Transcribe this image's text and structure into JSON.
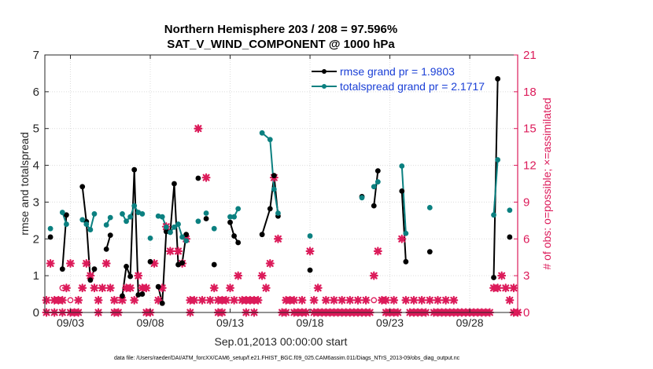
{
  "chart_data": {
    "type": "line",
    "title": "Northern Hemisphere 203 / 208 = 97.596%",
    "subtitle": "SAT_V_WIND_COMPONENT @ 1000 hPa",
    "xlabel": "Sep.01,2013 00:00:00 start",
    "ylabel_left": "rmse and totalspread",
    "ylabel_right": "# of obs: o=possible; ×=assimilated",
    "footer": "data file: /Users/raeder/DAI/ATM_forcXX/CAM6_setup/f.e21.FHIST_BGC.f09_025.CAM6assim.011/Diags_NTrS_2013-09/obs_diag_output.nc",
    "xlim": [
      1.4,
      31.0
    ],
    "ylim_left": [
      0,
      7
    ],
    "ylim_right": [
      0,
      21
    ],
    "x_ticks": [
      3,
      8,
      13,
      18,
      23,
      28
    ],
    "x_tick_labels": [
      "09/03",
      "09/08",
      "09/13",
      "09/18",
      "09/23",
      "09/28"
    ],
    "y_ticks_left": [
      0,
      1,
      2,
      3,
      4,
      5,
      6,
      7
    ],
    "y_ticks_right": [
      0,
      3,
      6,
      9,
      12,
      15,
      18,
      21
    ],
    "grid": true,
    "legend_position": "top-right",
    "colors": {
      "rmse": "#000000",
      "spread": "#0b8080",
      "obs": "#dc1b5a",
      "axis": "#262626"
    },
    "series": [
      {
        "name": "rmse",
        "legend": "rmse grand pr = 1.9803",
        "points": [
          [
            1.75,
            2.05
          ],
          [
            2.5,
            1.18
          ],
          [
            2.75,
            2.65
          ],
          [
            3.75,
            3.42
          ],
          [
            4.0,
            2.47
          ],
          [
            4.25,
            0.88
          ],
          [
            4.5,
            1.18
          ],
          [
            5.25,
            1.72
          ],
          [
            5.5,
            2.1
          ],
          [
            6.25,
            0.45
          ],
          [
            6.5,
            1.25
          ],
          [
            6.75,
            0.98
          ],
          [
            7.0,
            3.88
          ],
          [
            7.25,
            0.48
          ],
          [
            7.5,
            0.5
          ],
          [
            8.0,
            1.38
          ],
          [
            8.5,
            0.7
          ],
          [
            8.75,
            0.25
          ],
          [
            9.0,
            2.2
          ],
          [
            9.25,
            2.18
          ],
          [
            9.5,
            3.5
          ],
          [
            9.75,
            1.3
          ],
          [
            10.0,
            1.35
          ],
          [
            10.25,
            2.12
          ],
          [
            11.0,
            3.65
          ],
          [
            11.5,
            2.55
          ],
          [
            12.0,
            1.3
          ],
          [
            13.0,
            2.45
          ],
          [
            13.25,
            2.08
          ],
          [
            13.5,
            1.9
          ],
          [
            15.0,
            2.12
          ],
          [
            15.5,
            2.82
          ],
          [
            15.75,
            3.72
          ],
          [
            16.0,
            2.62
          ],
          [
            18.0,
            1.15
          ],
          [
            21.25,
            3.15
          ],
          [
            22.0,
            2.9
          ],
          [
            22.25,
            3.85
          ],
          [
            23.75,
            3.3
          ],
          [
            24.0,
            1.38
          ],
          [
            25.5,
            1.65
          ],
          [
            29.5,
            0.95
          ],
          [
            29.75,
            6.35
          ],
          [
            30.5,
            2.05
          ]
        ]
      },
      {
        "name": "totalspread",
        "legend": "totalspread grand pr = 2.1717",
        "points": [
          [
            1.75,
            2.28
          ],
          [
            2.5,
            2.72
          ],
          [
            2.75,
            2.4
          ],
          [
            3.75,
            2.52
          ],
          [
            4.0,
            2.4
          ],
          [
            4.25,
            2.25
          ],
          [
            4.5,
            2.68
          ],
          [
            5.25,
            2.38
          ],
          [
            5.5,
            2.58
          ],
          [
            6.25,
            2.68
          ],
          [
            6.5,
            2.48
          ],
          [
            6.75,
            2.6
          ],
          [
            7.0,
            2.9
          ],
          [
            7.25,
            2.72
          ],
          [
            7.5,
            2.68
          ],
          [
            8.0,
            2.02
          ],
          [
            8.5,
            2.62
          ],
          [
            8.75,
            2.6
          ],
          [
            9.0,
            2.32
          ],
          [
            9.25,
            2.18
          ],
          [
            9.5,
            2.32
          ],
          [
            9.75,
            2.4
          ],
          [
            10.0,
            2.05
          ],
          [
            10.25,
            1.95
          ],
          [
            11.0,
            2.48
          ],
          [
            11.5,
            2.7
          ],
          [
            12.0,
            2.28
          ],
          [
            13.0,
            2.6
          ],
          [
            13.25,
            2.6
          ],
          [
            13.5,
            2.82
          ],
          [
            15.0,
            4.88
          ],
          [
            15.5,
            4.7
          ],
          [
            15.75,
            3.35
          ],
          [
            16.0,
            2.7
          ],
          [
            18.0,
            2.08
          ],
          [
            21.25,
            3.12
          ],
          [
            22.0,
            3.42
          ],
          [
            22.25,
            3.55
          ],
          [
            23.75,
            3.98
          ],
          [
            24.0,
            2.15
          ],
          [
            25.5,
            2.85
          ],
          [
            29.5,
            2.65
          ],
          [
            29.75,
            4.15
          ],
          [
            30.5,
            2.78
          ]
        ]
      }
    ],
    "segments": [
      [
        1.75,
        1.75
      ],
      [
        2.5,
        2.75
      ],
      [
        3.75,
        4.5
      ],
      [
        5.25,
        5.5
      ],
      [
        6.25,
        7.5
      ],
      [
        8.0,
        8.0
      ],
      [
        8.5,
        10.25
      ],
      [
        11.0,
        11.0
      ],
      [
        11.5,
        11.5
      ],
      [
        12.0,
        12.0
      ],
      [
        13.0,
        13.5
      ],
      [
        15.0,
        16.0
      ],
      [
        18.0,
        18.0
      ],
      [
        21.25,
        21.25
      ],
      [
        22.0,
        22.25
      ],
      [
        23.75,
        24.0
      ],
      [
        25.5,
        25.5
      ],
      [
        29.5,
        29.75
      ],
      [
        30.5,
        30.5
      ]
    ],
    "obs_assimilated": [
      [
        1.5,
        1
      ],
      [
        1.75,
        4
      ],
      [
        2.0,
        1
      ],
      [
        2.25,
        1
      ],
      [
        2.5,
        1
      ],
      [
        2.75,
        2
      ],
      [
        3.0,
        4
      ],
      [
        3.5,
        1
      ],
      [
        3.75,
        2
      ],
      [
        4.0,
        4
      ],
      [
        4.25,
        3
      ],
      [
        4.5,
        2
      ],
      [
        4.75,
        1
      ],
      [
        5.0,
        2
      ],
      [
        5.25,
        4
      ],
      [
        5.5,
        2
      ],
      [
        5.75,
        1
      ],
      [
        6.25,
        1
      ],
      [
        6.5,
        2
      ],
      [
        6.75,
        2
      ],
      [
        7.0,
        1
      ],
      [
        7.25,
        3
      ],
      [
        7.5,
        2
      ],
      [
        7.75,
        2
      ],
      [
        8.25,
        4
      ],
      [
        8.5,
        1
      ],
      [
        8.75,
        2
      ],
      [
        9.0,
        7
      ],
      [
        9.25,
        5
      ],
      [
        9.75,
        5
      ],
      [
        10.0,
        4
      ],
      [
        10.25,
        6
      ],
      [
        10.5,
        1
      ],
      [
        10.75,
        1
      ],
      [
        11.0,
        15
      ],
      [
        11.25,
        1
      ],
      [
        11.5,
        11
      ],
      [
        11.75,
        1
      ],
      [
        12.0,
        2
      ],
      [
        12.25,
        1
      ],
      [
        12.5,
        1
      ],
      [
        12.75,
        1
      ],
      [
        13.0,
        2
      ],
      [
        13.25,
        1
      ],
      [
        13.5,
        3
      ],
      [
        13.75,
        1
      ],
      [
        14.0,
        1
      ],
      [
        14.25,
        1
      ],
      [
        14.5,
        1
      ],
      [
        14.75,
        1
      ],
      [
        15.0,
        3
      ],
      [
        15.25,
        2
      ],
      [
        15.5,
        4
      ],
      [
        15.75,
        11
      ],
      [
        16.0,
        6
      ],
      [
        16.5,
        1
      ],
      [
        16.75,
        1
      ],
      [
        17.0,
        1
      ],
      [
        17.5,
        1
      ],
      [
        18.0,
        5
      ],
      [
        18.25,
        1
      ],
      [
        18.5,
        2
      ],
      [
        19.0,
        1
      ],
      [
        19.5,
        1
      ],
      [
        20.0,
        1
      ],
      [
        20.5,
        1
      ],
      [
        21.0,
        1
      ],
      [
        21.5,
        1
      ],
      [
        22.0,
        3
      ],
      [
        22.25,
        5
      ],
      [
        22.5,
        1
      ],
      [
        22.75,
        1
      ],
      [
        23.25,
        1
      ],
      [
        23.75,
        6
      ],
      [
        24.0,
        1
      ],
      [
        24.5,
        1
      ],
      [
        25.0,
        1
      ],
      [
        25.5,
        1
      ],
      [
        26.0,
        1
      ],
      [
        26.5,
        1
      ],
      [
        27.0,
        1
      ],
      [
        29.5,
        2
      ],
      [
        29.75,
        2
      ],
      [
        30.0,
        3
      ],
      [
        30.25,
        2
      ],
      [
        30.5,
        1
      ],
      [
        30.75,
        2
      ]
    ],
    "obs_zero": [
      1.5,
      2.0,
      2.5,
      3.0,
      3.25,
      3.5,
      4.75,
      5.75,
      6.0,
      7.75,
      8.0,
      10.5,
      12.25,
      12.5,
      14.0,
      14.5,
      16.25,
      16.5,
      17.0,
      17.25,
      17.5,
      17.75,
      18.25,
      18.5,
      18.75,
      19.0,
      19.25,
      19.5,
      19.75,
      20.0,
      20.25,
      20.5,
      20.75,
      21.0,
      21.25,
      21.5,
      21.75,
      22.75,
      23.0,
      23.25,
      23.5,
      24.25,
      24.5,
      24.75,
      25.0,
      25.25,
      25.75,
      26.0,
      26.25,
      26.5,
      26.75,
      27.0,
      27.25,
      27.5,
      27.75,
      28.0,
      28.25,
      28.5,
      28.75,
      29.0,
      29.25,
      30.75,
      31.0
    ],
    "obs_possible_circles": [
      [
        2.5,
        2
      ],
      [
        3.0,
        1
      ],
      [
        6.0,
        1
      ],
      [
        22.0,
        1
      ]
    ]
  }
}
